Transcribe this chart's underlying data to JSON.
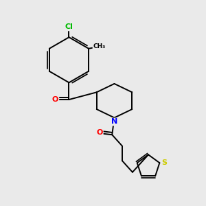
{
  "background_color": "#eaeaea",
  "bond_color": "#000000",
  "atom_colors": {
    "Cl": "#00bb00",
    "O": "#ff0000",
    "N": "#0000ff",
    "S": "#cccc00",
    "C": "#000000"
  },
  "bond_lw": 1.4,
  "double_sep": 0.09
}
